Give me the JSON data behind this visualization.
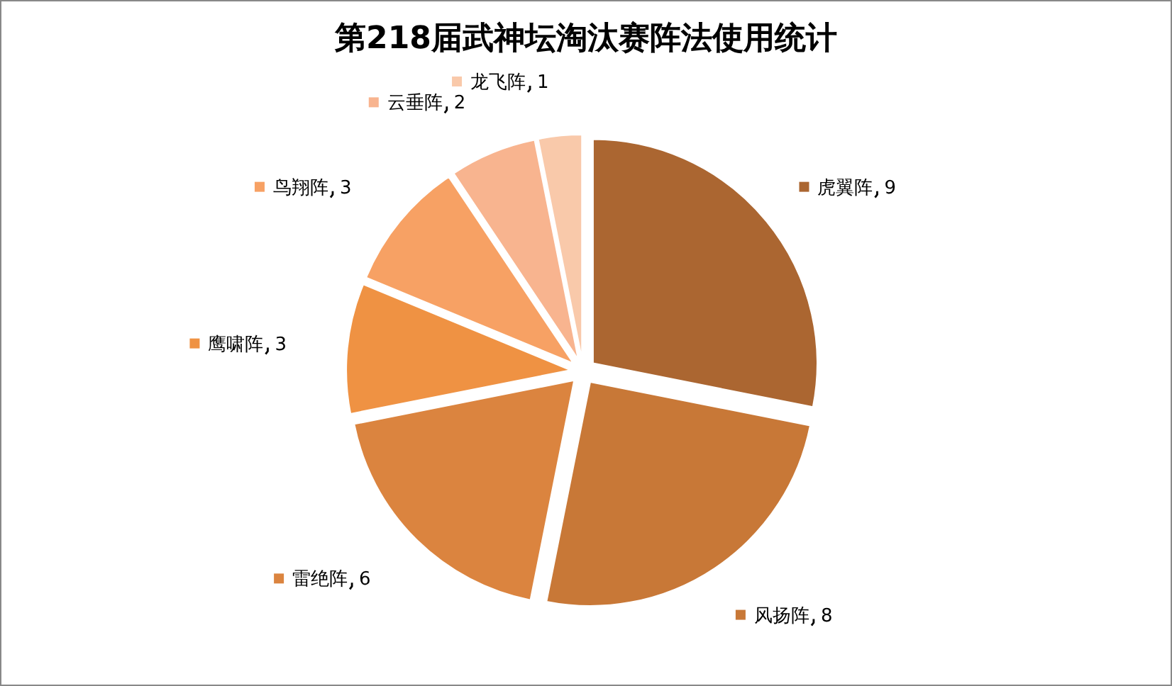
{
  "chart_data": {
    "type": "pie",
    "title": "第218届武神坛淘汰赛阵法使用统计",
    "categories": [
      "虎翼阵",
      "风扬阵",
      "雷绝阵",
      "鹰啸阵",
      "鸟翔阵",
      "云垂阵",
      "龙飞阵"
    ],
    "values": [
      9,
      8,
      6,
      3,
      3,
      2,
      1
    ],
    "colors": [
      "#ab6631",
      "#c87837",
      "#db843f",
      "#ef9243",
      "#f7a164",
      "#f8b48f",
      "#f9c9aa"
    ],
    "data_labels": true,
    "legend": "top left"
  }
}
